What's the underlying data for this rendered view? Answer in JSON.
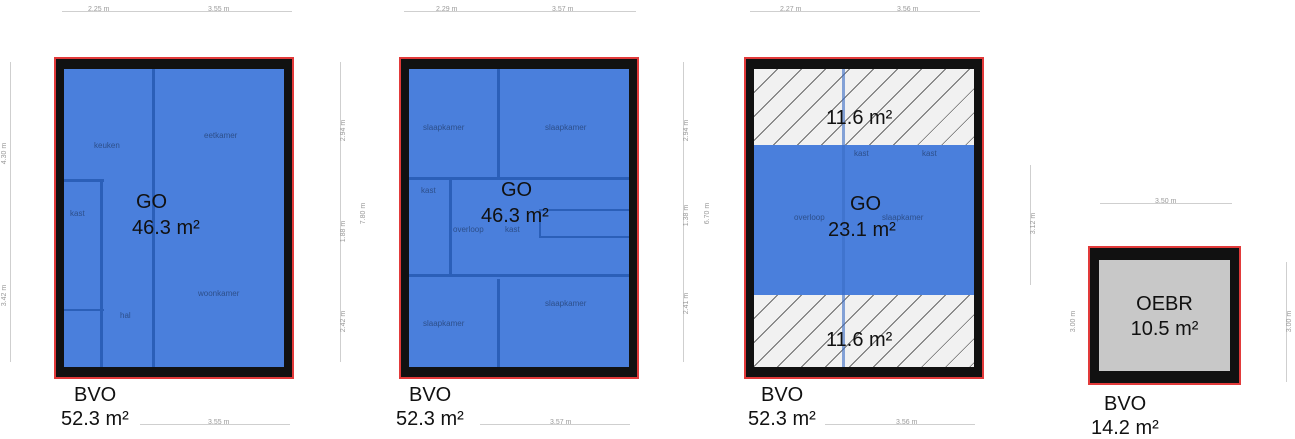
{
  "colors": {
    "go_fill": "#4a7fdc",
    "outline": "#e23a3a",
    "wall": "#111111",
    "oebr_fill": "#c8c8c8"
  },
  "top_dims": [
    "2.25 m",
    "3.55 m",
    "2.29 m",
    "3.57 m",
    "2.27 m",
    "3.56 m"
  ],
  "plan1": {
    "rooms": [
      "keuken",
      "eetkamer",
      "kast",
      "woonkamer",
      "hal"
    ],
    "go_label": "GO",
    "go_area": "46.3 m²",
    "bvo_label": "BVO",
    "bvo_area": "52.3 m²",
    "side_dims": [
      "4.30 m",
      "3.42 m"
    ],
    "right_dims": [
      "2.94 m",
      "1.88 m",
      "2.42 m",
      "7.80 m"
    ],
    "bottom_dim": "3.55 m"
  },
  "plan2": {
    "rooms": [
      "slaapkamer",
      "slaapkamer",
      "kast",
      "overloop",
      "kast",
      "slaapkamer",
      "slaapkamer"
    ],
    "go_label": "GO",
    "go_area": "46.3 m²",
    "bvo_label": "BVO",
    "bvo_area": "52.3 m²",
    "right_dims": [
      "2.94 m",
      "1.38 m",
      "2.41 m",
      "6.70 m"
    ],
    "bottom_dim": "3.57 m"
  },
  "plan3": {
    "rooms": [
      "kast",
      "kast",
      "overloop",
      "slaapkamer"
    ],
    "go_label": "GO",
    "go_area": "23.1 m²",
    "top_area": "11.6 m²",
    "bottom_area": "11.6 m²",
    "bvo_label": "BVO",
    "bvo_area": "52.3 m²",
    "bottom_dim": "3.56 m"
  },
  "plan4": {
    "label": "OEBR",
    "area": "10.5 m²",
    "bvo_label": "BVO",
    "bvo_area": "14.2 m²",
    "top_dim": "3.50 m",
    "side_dims": [
      "3.12 m",
      "3.00 m",
      "3.00 m"
    ]
  }
}
